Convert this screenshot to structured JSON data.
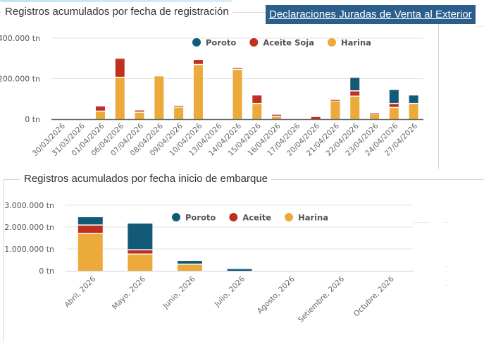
{
  "header": {
    "link_label": "Declaraciones Juradas de Venta al Exterior"
  },
  "colors": {
    "poroto": "#135a78",
    "aceite": "#c0301f",
    "harina": "#ebaa3a",
    "grid": "#e3e3e3",
    "axis_top": "#666666",
    "axis_bottom": "#c7cfe0",
    "link_bg": "#2a5e8c"
  },
  "chart_data": [
    {
      "type": "bar",
      "stacked": true,
      "title": "Registros acumulados por fecha de registración",
      "xlabel": "",
      "ylabel": "",
      "ylim": [
        0,
        400000
      ],
      "yticks": [
        0,
        200000,
        400000
      ],
      "ytick_labels": [
        "0 tn",
        "200.000 tn",
        "400.000 tn"
      ],
      "grid": true,
      "legend_position": "top-right",
      "legend": [
        "Poroto",
        "Aceite Soja",
        "Harina"
      ],
      "categories": [
        "30/03/2026",
        "31/03/2026",
        "01/04/2026",
        "06/04/2026",
        "07/04/2026",
        "08/04/2026",
        "09/04/2026",
        "10/04/2026",
        "13/04/2026",
        "14/04/2026",
        "15/04/2026",
        "16/04/2026",
        "17/04/2026",
        "20/04/2026",
        "21/04/2026",
        "22/04/2026",
        "23/04/2026",
        "24/04/2026",
        "27/04/2026"
      ],
      "series": [
        {
          "name": "Harina",
          "color": "#ebaa3a",
          "values": [
            0,
            0,
            37000,
            204000,
            32000,
            211000,
            57000,
            267000,
            0,
            243000,
            75000,
            12000,
            0,
            0,
            88000,
            111000,
            23000,
            55000,
            75000
          ]
        },
        {
          "name": "Aceite Soja",
          "color": "#c0301f",
          "values": [
            0,
            0,
            26000,
            94000,
            11000,
            0,
            9000,
            25000,
            0,
            9000,
            42000,
            10000,
            0,
            11000,
            7000,
            26000,
            5000,
            20000,
            0
          ]
        },
        {
          "name": "Poroto",
          "color": "#135a78",
          "values": [
            0,
            0,
            0,
            0,
            0,
            0,
            0,
            0,
            0,
            0,
            0,
            0,
            0,
            0,
            0,
            67000,
            0,
            69000,
            42000
          ]
        }
      ]
    },
    {
      "type": "bar",
      "stacked": true,
      "title": "Registros acumulados por fecha inicio de embarque",
      "xlabel": "",
      "ylabel": "",
      "ylim": [
        0,
        3000000
      ],
      "yticks": [
        0,
        1000000,
        2000000,
        3000000
      ],
      "ytick_labels": [
        "0 tn",
        "1.000.000 tn",
        "2.000.000 tn",
        "3.000.000 tn"
      ],
      "grid": true,
      "legend_position": "top-right",
      "legend": [
        "Poroto",
        "Aceite",
        "Harina"
      ],
      "categories": [
        "Abril, 2026",
        "Mayo, 2026",
        "Junio, 2026",
        "Julio, 2026",
        "Agosto, 2026",
        "Setiembre, 2026",
        "Octubre, 2026"
      ],
      "series": [
        {
          "name": "Harina",
          "color": "#ebaa3a",
          "values": [
            1680000,
            740000,
            280000,
            0,
            0,
            0,
            0
          ]
        },
        {
          "name": "Aceite",
          "color": "#c0301f",
          "values": [
            390000,
            200000,
            0,
            0,
            0,
            0,
            0
          ]
        },
        {
          "name": "Poroto",
          "color": "#135a78",
          "values": [
            380000,
            1220000,
            170000,
            80000,
            0,
            0,
            0
          ]
        }
      ]
    }
  ]
}
